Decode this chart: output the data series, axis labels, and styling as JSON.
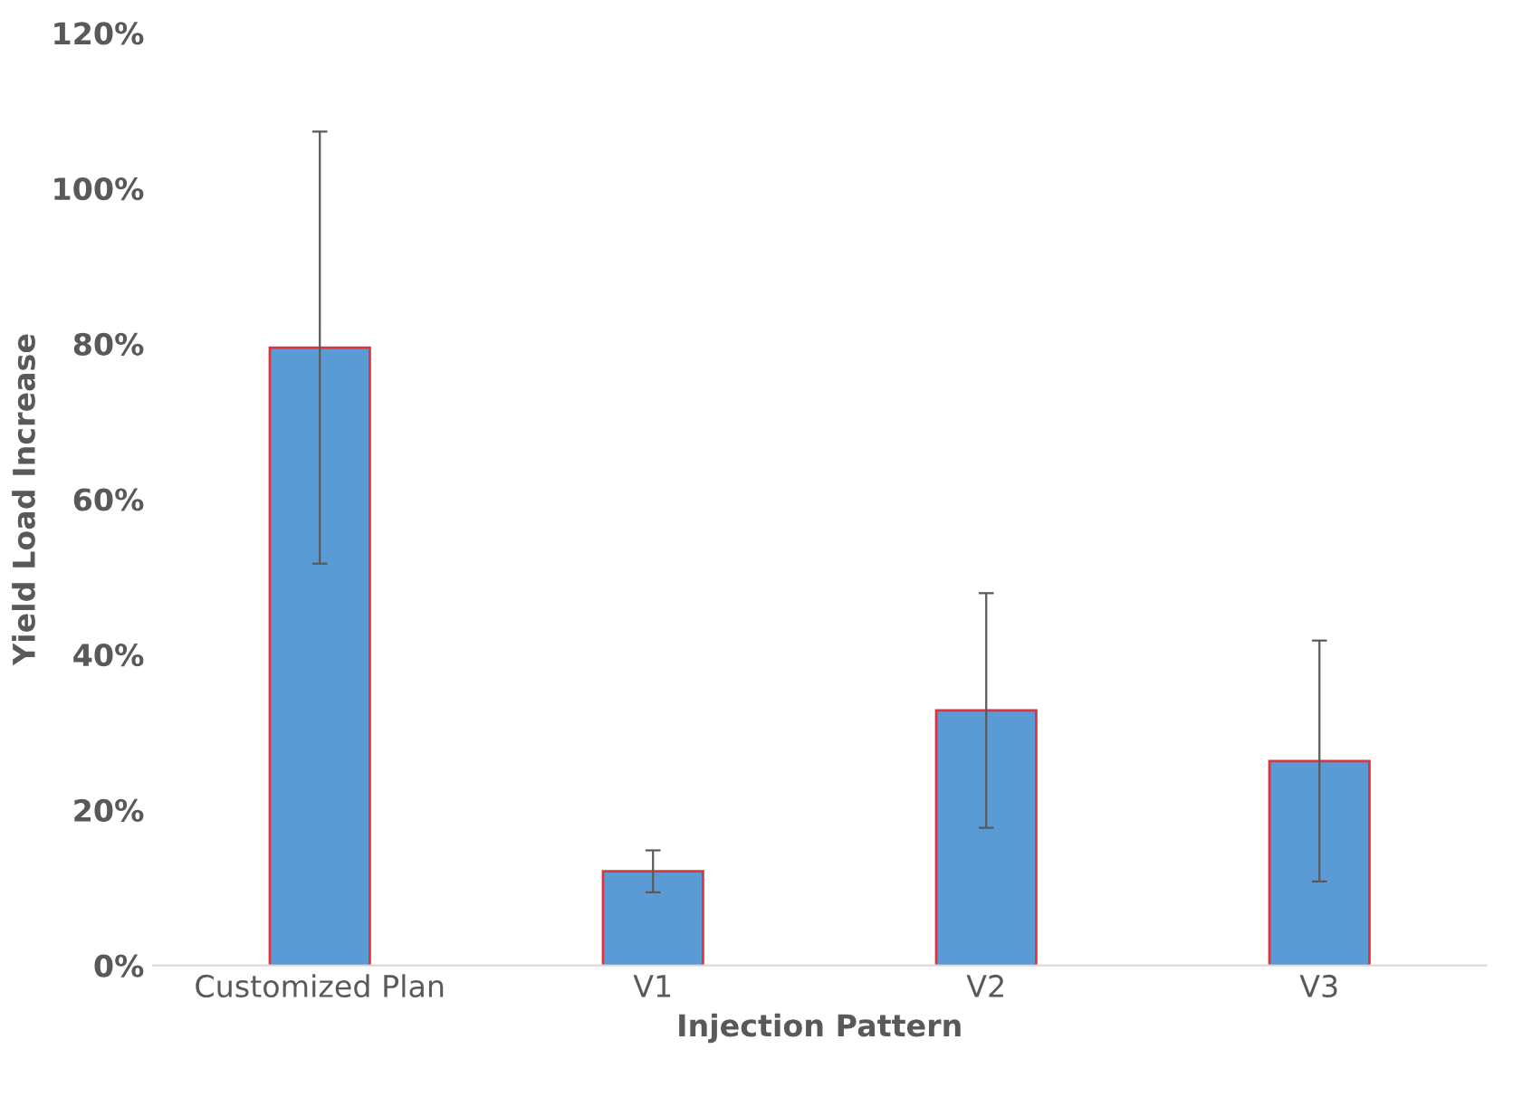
{
  "chart_data": {
    "type": "bar",
    "xlabel": "Injection Pattern",
    "ylabel": "Yield Load Increase",
    "categories": [
      "Customized Plan",
      "V1",
      "V2",
      "V3"
    ],
    "values": [
      79.5,
      12.1,
      32.8,
      26.3
    ],
    "errors": [
      27.8,
      2.7,
      15.1,
      15.5
    ],
    "color": "#5b9bd5",
    "ylim": [
      0,
      120
    ],
    "yticks": [
      {
        "value": 0,
        "label": "0%"
      },
      {
        "value": 20,
        "label": "20%"
      },
      {
        "value": 40,
        "label": "40%"
      },
      {
        "value": 60,
        "label": "60%"
      },
      {
        "value": 80,
        "label": "80%"
      },
      {
        "value": 100,
        "label": "100%"
      },
      {
        "value": 120,
        "label": "120%"
      }
    ],
    "grid": false,
    "legend": false
  }
}
